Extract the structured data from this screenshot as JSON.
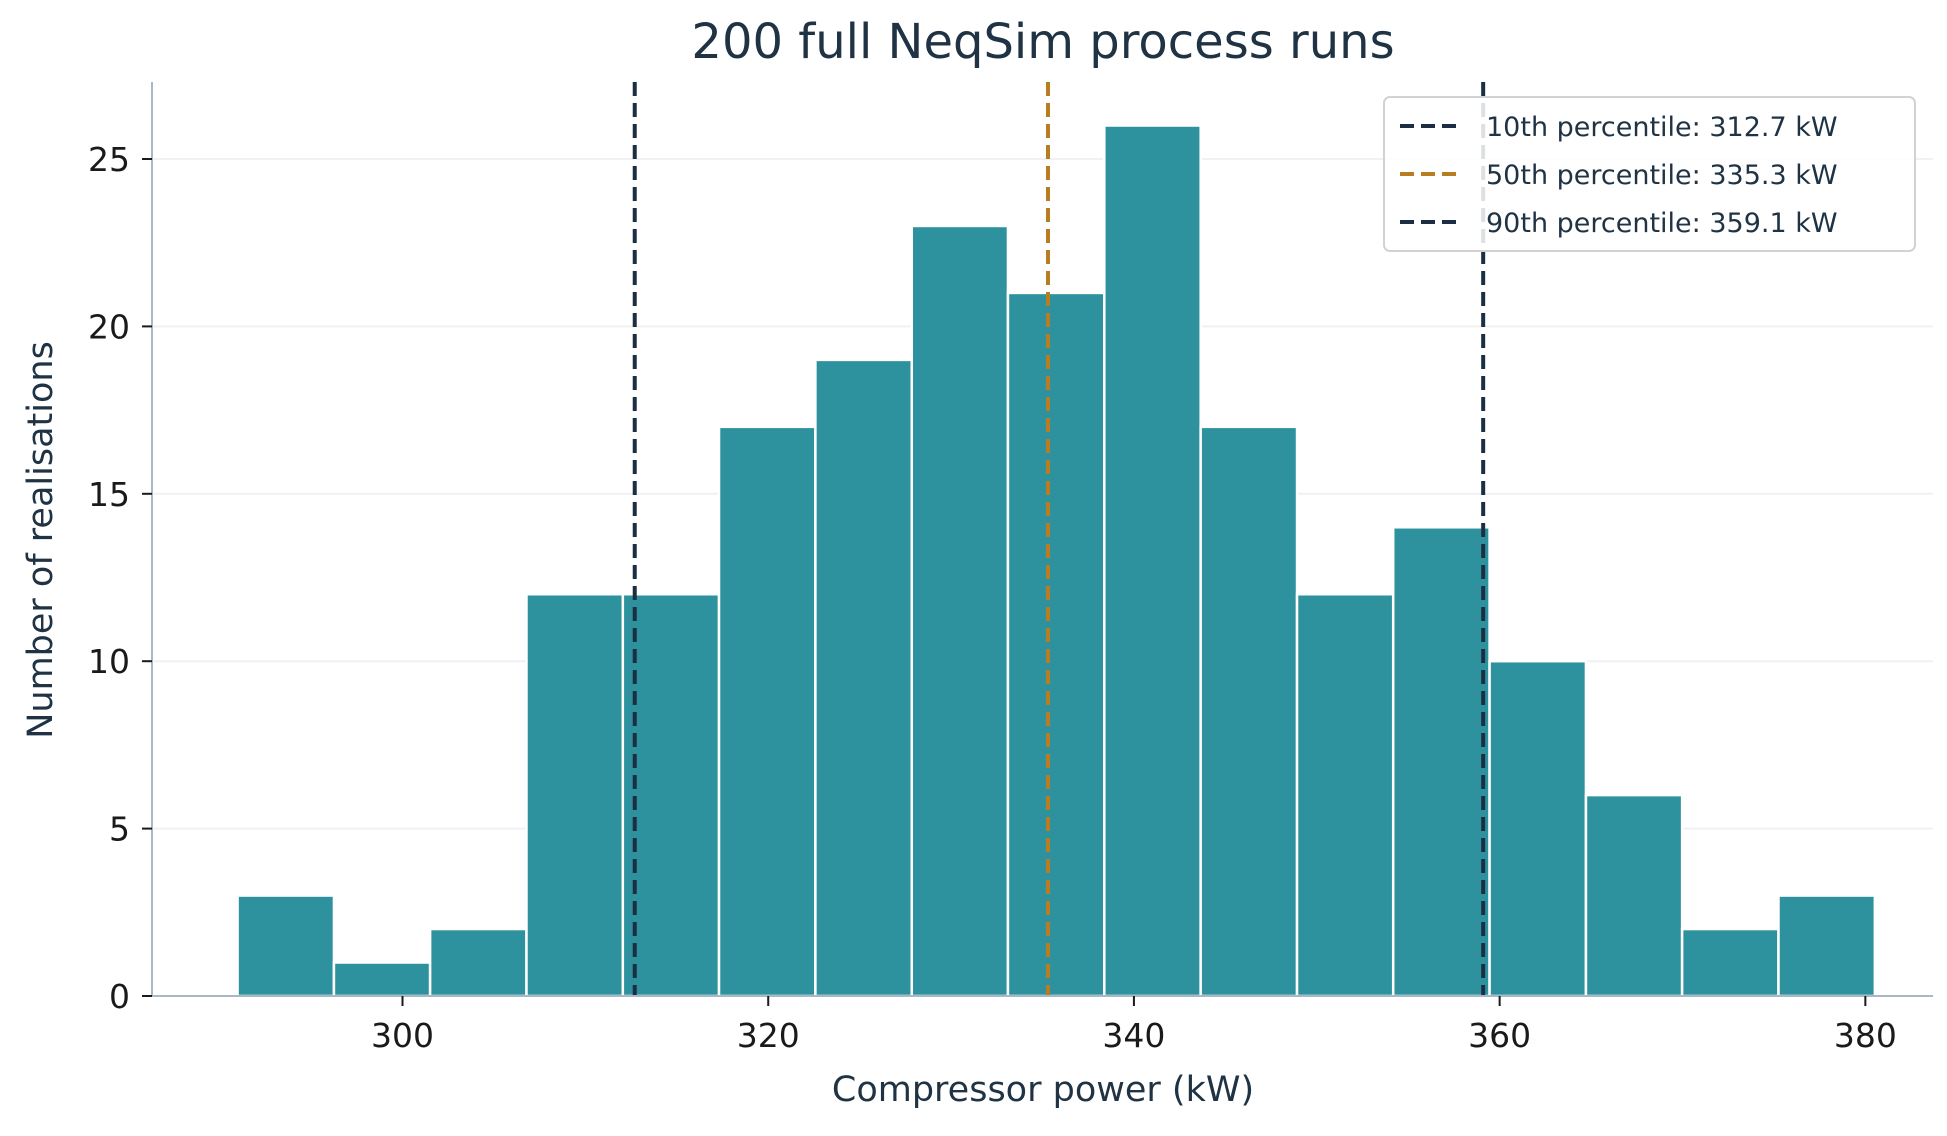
{
  "chart_data": {
    "type": "histogram",
    "title": "200 full NeqSim process runs",
    "xlabel": "Compressor power (kW)",
    "ylabel": "Number of realisations",
    "xlim": [
      286.3,
      383.7
    ],
    "ylim": [
      0,
      27.3
    ],
    "xticks": [
      300,
      320,
      340,
      360,
      380
    ],
    "yticks": [
      0,
      5,
      10,
      15,
      20,
      25
    ],
    "grid": "horizontal",
    "legend_position": "top-right",
    "bar_color": "#2e929e",
    "bins": [
      {
        "start": 290.98,
        "end": 296.25,
        "count": 3
      },
      {
        "start": 296.25,
        "end": 301.51,
        "count": 1
      },
      {
        "start": 301.51,
        "end": 306.78,
        "count": 2
      },
      {
        "start": 306.78,
        "end": 312.05,
        "count": 12
      },
      {
        "start": 312.05,
        "end": 317.31,
        "count": 12
      },
      {
        "start": 317.31,
        "end": 322.58,
        "count": 17
      },
      {
        "start": 322.58,
        "end": 327.85,
        "count": 19
      },
      {
        "start": 327.85,
        "end": 333.11,
        "count": 23
      },
      {
        "start": 333.11,
        "end": 338.38,
        "count": 21
      },
      {
        "start": 338.38,
        "end": 343.65,
        "count": 26
      },
      {
        "start": 343.65,
        "end": 348.92,
        "count": 17
      },
      {
        "start": 348.92,
        "end": 354.18,
        "count": 12
      },
      {
        "start": 354.18,
        "end": 359.45,
        "count": 14
      },
      {
        "start": 359.45,
        "end": 364.72,
        "count": 10
      },
      {
        "start": 364.72,
        "end": 369.98,
        "count": 6
      },
      {
        "start": 369.98,
        "end": 375.25,
        "count": 2
      },
      {
        "start": 375.25,
        "end": 380.52,
        "count": 3
      }
    ],
    "reference_lines": [
      {
        "name": "10th percentile: 312.7 kW",
        "value": 312.7,
        "color": "#1c2e44",
        "style": "dashed"
      },
      {
        "name": "50th percentile: 335.3 kW",
        "value": 335.3,
        "color": "#b87d22",
        "style": "dashed"
      },
      {
        "name": "90th percentile: 359.1 kW",
        "value": 359.1,
        "color": "#1c2e44",
        "style": "dashed"
      }
    ]
  }
}
